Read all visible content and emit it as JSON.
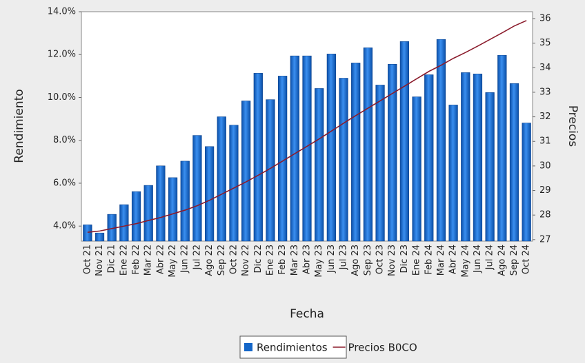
{
  "chart_data": {
    "type": "bar",
    "x_label": "Fecha",
    "y_label": "Rendimiento",
    "y2_label": "Precios",
    "categories": [
      "Oct 21",
      "Nov 21",
      "Dic 21",
      "Ene 22",
      "Feb 22",
      "Mar 22",
      "Abr 22",
      "May 22",
      "Jun 22",
      "Jul 22",
      "Ago 22",
      "Sep 22",
      "Oct 22",
      "Nov 22",
      "Dic 22",
      "Ene 23",
      "Feb 23",
      "Mar 23",
      "Abr 23",
      "May 23",
      "Jun 23",
      "Jul 23",
      "Ago 23",
      "Sep 23",
      "Oct 23",
      "Nov 23",
      "Dic 23",
      "Ene 24",
      "Feb 24",
      "Mar 24",
      "Abr 24",
      "May 24",
      "Jun 24",
      "Jul 24",
      "Ago 24",
      "Sep 24",
      "Oct 24"
    ],
    "series": [
      {
        "name": "Rendimientos",
        "type": "bar",
        "color": "#1466c8",
        "values": [
          4.06,
          3.68,
          4.55,
          5.0,
          5.61,
          5.9,
          6.81,
          6.26,
          7.03,
          8.23,
          7.71,
          9.1,
          8.71,
          9.84,
          11.13,
          9.9,
          11.0,
          11.94,
          11.94,
          10.42,
          12.03,
          10.9,
          11.61,
          12.32,
          10.58,
          11.55,
          12.61,
          10.03,
          11.06,
          12.71,
          9.65,
          11.16,
          11.1,
          10.23,
          11.97,
          10.65,
          8.81
        ]
      },
      {
        "name": "Precios B0CO",
        "type": "line",
        "axis": "y2",
        "color": "#8b1c2c",
        "values": [
          27.3,
          27.35,
          27.45,
          27.55,
          27.65,
          27.78,
          27.9,
          28.05,
          28.2,
          28.38,
          28.6,
          28.85,
          29.1,
          29.35,
          29.62,
          29.9,
          30.2,
          30.5,
          30.8,
          31.1,
          31.42,
          31.74,
          32.05,
          32.35,
          32.65,
          32.95,
          33.25,
          33.55,
          33.85,
          34.1,
          34.38,
          34.62,
          34.88,
          35.15,
          35.42,
          35.7,
          35.92
        ]
      }
    ],
    "ylim": [
      3.3,
      14.0
    ],
    "yticks": [
      {
        "value": 4,
        "label": "4.0%"
      },
      {
        "value": 6,
        "label": "6.0%"
      },
      {
        "value": 8,
        "label": "8.0%"
      },
      {
        "value": 10,
        "label": "10.0%"
      },
      {
        "value": 12,
        "label": "12.0%"
      },
      {
        "value": 14,
        "label": "14.0%"
      }
    ],
    "y2lim": [
      26.94,
      36.28
    ],
    "y2ticks": [
      27,
      28,
      29,
      30,
      31,
      32,
      33,
      34,
      35,
      36
    ],
    "grid": false,
    "legend": "bottom"
  }
}
